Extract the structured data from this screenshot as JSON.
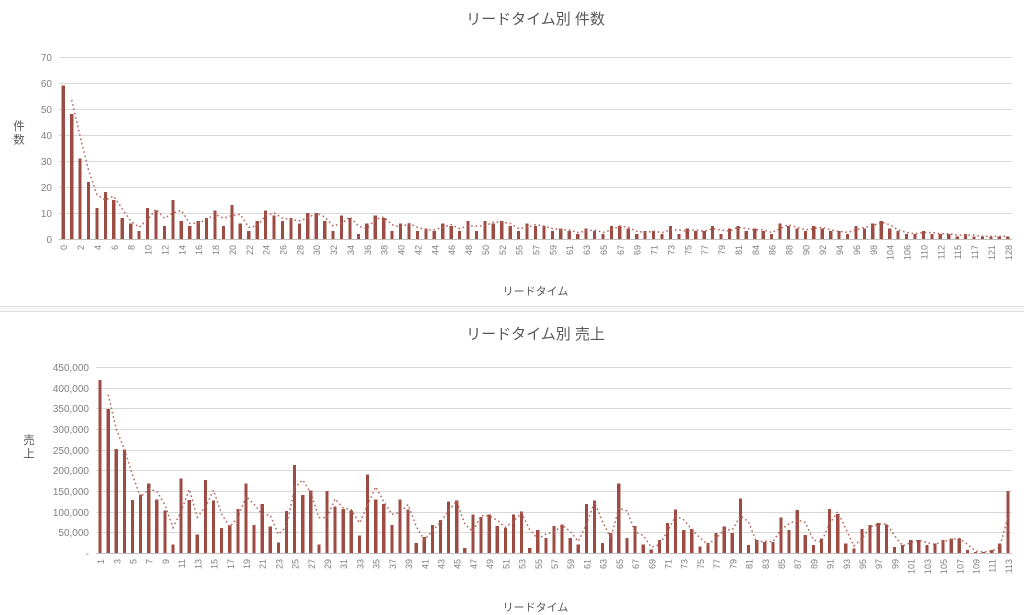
{
  "app": {
    "background": "#ffffff"
  },
  "colors": {
    "bar": "#9E4B43",
    "trendline": "#B5655C",
    "gridline": "#D9D9D9",
    "axis_line": "#BFBFBF",
    "title_text": "#595959",
    "tick_text": "#808080"
  },
  "chart_data": [
    {
      "type": "bar",
      "title": "リードタイム別 件数",
      "xlabel": "リードタイム",
      "ylabel": "件数",
      "ylim": [
        0,
        70
      ],
      "ytick_step": 10,
      "ytick_labels": [
        "0",
        "10",
        "20",
        "30",
        "40",
        "50",
        "60",
        "70"
      ],
      "grid": true,
      "legend": "none",
      "trendline_type": "dotted 2-period moving average",
      "categories": [
        "0",
        "1",
        "2",
        "3",
        "4",
        "5",
        "6",
        "7",
        "8",
        "9",
        "10",
        "11",
        "12",
        "13",
        "14",
        "15",
        "16",
        "17",
        "18",
        "19",
        "20",
        "21",
        "22",
        "23",
        "24",
        "25",
        "26",
        "27",
        "28",
        "29",
        "30",
        "31",
        "32",
        "33",
        "34",
        "35",
        "36",
        "37",
        "38",
        "39",
        "40",
        "41",
        "42",
        "43",
        "44",
        "45",
        "46",
        "47",
        "48",
        "49",
        "50",
        "51",
        "52",
        "53",
        "55",
        "56",
        "57",
        "58",
        "59",
        "60",
        "61",
        "62",
        "63",
        "64",
        "65",
        "66",
        "67",
        "68",
        "69",
        "70",
        "71",
        "72",
        "73",
        "74",
        "75",
        "76",
        "77",
        "78",
        "79",
        "80",
        "81",
        "82",
        "84",
        "85",
        "86",
        "87",
        "88",
        "89",
        "90",
        "91",
        "92",
        "93",
        "94",
        "95",
        "96",
        "97",
        "98",
        "100",
        "104",
        "105",
        "106",
        "108",
        "110",
        "111",
        "112",
        "113",
        "115",
        "116",
        "117",
        "119",
        "121",
        "124",
        "128"
      ],
      "values": [
        59,
        48,
        31,
        22,
        12,
        18,
        15,
        8,
        6,
        3,
        12,
        11,
        5,
        15,
        7,
        5,
        7,
        8,
        11,
        5,
        13,
        6,
        3,
        7,
        11,
        9,
        7,
        8,
        6,
        10,
        10,
        7,
        3,
        9,
        8,
        2,
        6,
        9,
        8,
        3,
        6,
        6,
        3,
        4,
        3,
        6,
        5,
        3,
        7,
        3,
        7,
        6,
        7,
        5,
        3,
        6,
        5,
        5,
        3,
        4,
        3,
        2,
        4,
        3,
        2,
        5,
        5,
        4,
        2,
        3,
        3,
        2,
        5,
        2,
        4,
        3,
        3,
        5,
        2,
        4,
        5,
        3,
        4,
        3,
        2,
        6,
        5,
        4,
        3,
        5,
        4,
        3,
        3,
        2,
        5,
        4,
        6,
        7,
        4,
        3,
        2,
        2,
        3,
        2,
        2,
        2,
        1,
        2,
        1,
        1,
        1,
        1,
        1
      ]
    },
    {
      "type": "bar",
      "title": "リードタイム別 売上",
      "xlabel": "リードタイム",
      "ylabel": "売上",
      "ylim": [
        0,
        450000
      ],
      "ytick_step": 50000,
      "ytick_labels": [
        "-",
        "50,000",
        "100,000",
        "150,000",
        "200,000",
        "250,000",
        "300,000",
        "350,000",
        "400,000",
        "450,000"
      ],
      "grid": true,
      "legend": "none",
      "trendline_type": "dotted 2-period moving average",
      "categories": [
        "1",
        "2",
        "3",
        "4",
        "5",
        "6",
        "7",
        "8",
        "9",
        "10",
        "11",
        "12",
        "13",
        "14",
        "15",
        "16",
        "17",
        "18",
        "19",
        "20",
        "21",
        "22",
        "23",
        "24",
        "25",
        "26",
        "27",
        "28",
        "29",
        "30",
        "31",
        "32",
        "33",
        "34",
        "35",
        "36",
        "37",
        "38",
        "39",
        "40",
        "41",
        "42",
        "43",
        "44",
        "45",
        "46",
        "47",
        "48",
        "49",
        "50",
        "51",
        "52",
        "53",
        "54",
        "55",
        "56",
        "57",
        "58",
        "59",
        "60",
        "61",
        "62",
        "63",
        "64",
        "65",
        "66",
        "67",
        "68",
        "69",
        "70",
        "71",
        "72",
        "73",
        "74",
        "75",
        "76",
        "77",
        "78",
        "79",
        "80",
        "81",
        "82",
        "83",
        "84",
        "85",
        "86",
        "87",
        "88",
        "89",
        "90",
        "91",
        "92",
        "93",
        "94",
        "95",
        "96",
        "97",
        "98",
        "99",
        "100",
        "101",
        "102",
        "103",
        "104",
        "105",
        "106",
        "107",
        "108",
        "109",
        "110",
        "111",
        "112",
        "113"
      ],
      "values": [
        418000,
        348000,
        252000,
        250000,
        128000,
        142000,
        168000,
        130000,
        103000,
        20000,
        180000,
        128000,
        45000,
        177000,
        127000,
        61000,
        66000,
        106000,
        168000,
        68000,
        119000,
        64000,
        26000,
        102000,
        213000,
        140000,
        151000,
        21000,
        150000,
        112000,
        106000,
        103000,
        42000,
        190000,
        130000,
        119000,
        68000,
        129000,
        105000,
        24000,
        39000,
        68000,
        80000,
        124000,
        127000,
        12000,
        93000,
        87000,
        93000,
        65000,
        60000,
        93000,
        101000,
        12000,
        56000,
        36000,
        65000,
        69000,
        36000,
        20000,
        119000,
        127000,
        24000,
        48000,
        168000,
        36000,
        65000,
        20000,
        8000,
        32000,
        73000,
        105000,
        56000,
        58000,
        16000,
        24000,
        48000,
        64000,
        48000,
        132000,
        19000,
        31000,
        27000,
        27000,
        86000,
        56000,
        104000,
        44000,
        19000,
        35000,
        106000,
        94000,
        23000,
        11000,
        58000,
        68000,
        72000,
        69000,
        15000,
        19000,
        31000,
        31000,
        19000,
        23000,
        31000,
        35000,
        35000,
        7000,
        3000,
        2000,
        7000,
        23000,
        150000
      ]
    }
  ]
}
